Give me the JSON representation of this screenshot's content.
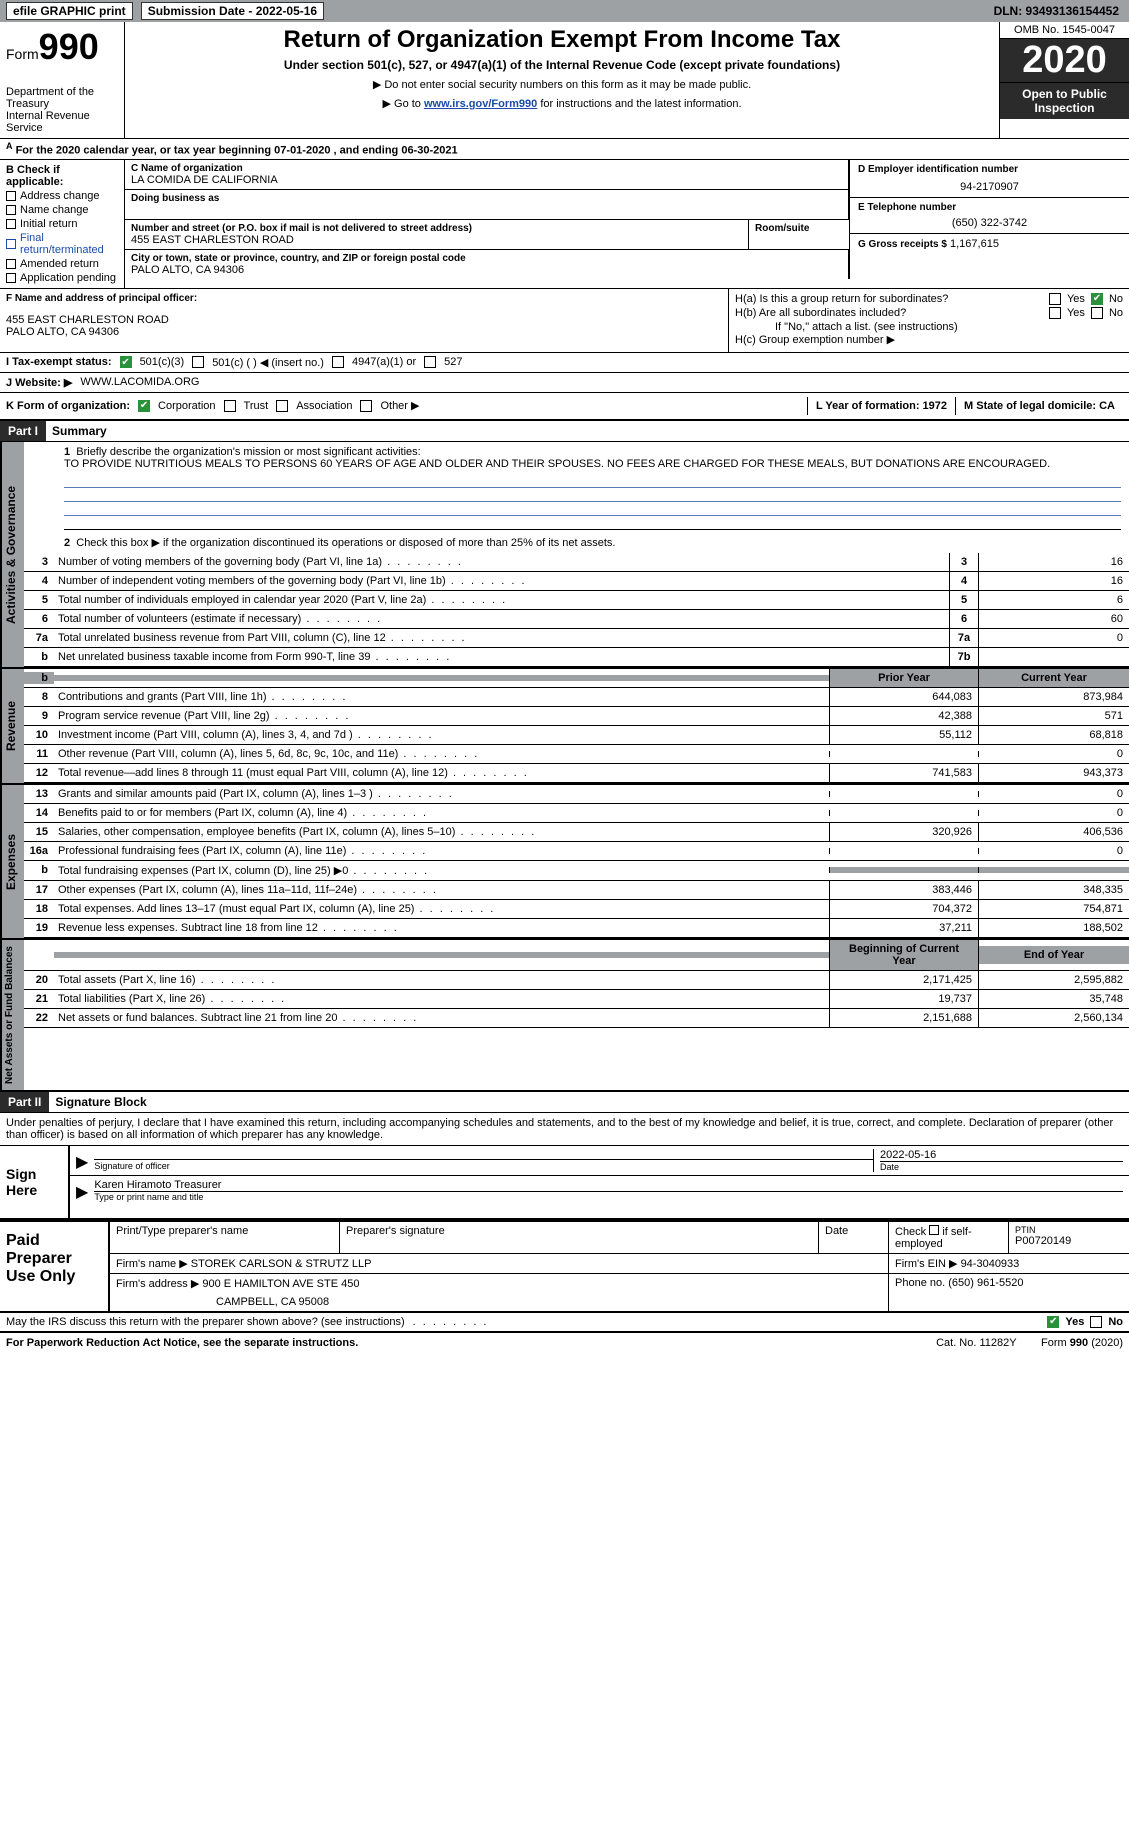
{
  "topbar": {
    "efile": "efile GRAPHIC print",
    "subdate_lbl": "Submission Date - 2022-05-16",
    "dln": "DLN: 93493136154452"
  },
  "header": {
    "form_word": "Form",
    "form_num": "990",
    "dept": "Department of the Treasury\nInternal Revenue Service",
    "title": "Return of Organization Exempt From Income Tax",
    "subtitle": "Under section 501(c), 527, or 4947(a)(1) of the Internal Revenue Code (except private foundations)",
    "note1": "▶ Do not enter social security numbers on this form as it may be made public.",
    "note2_pre": "▶ Go to ",
    "note2_link": "www.irs.gov/Form990",
    "note2_post": " for instructions and the latest information.",
    "omb": "OMB No. 1545-0047",
    "year": "2020",
    "openbox": "Open to Public Inspection"
  },
  "lineA": {
    "pre": "A",
    "text": "For the 2020 calendar year, or tax year beginning 07-01-2020    , and ending 06-30-2021"
  },
  "b": {
    "hdr": "B Check if applicable:",
    "opts": [
      "Address change",
      "Name change",
      "Initial return",
      "Final return/terminated",
      "Amended return",
      "Application pending"
    ]
  },
  "c": {
    "name_lbl": "C Name of organization",
    "name": "LA COMIDA DE CALIFORNIA",
    "dba_lbl": "Doing business as",
    "street_lbl": "Number and street (or P.O. box if mail is not delivered to street address)",
    "room_lbl": "Room/suite",
    "street": "455 EAST CHARLESTON ROAD",
    "city_lbl": "City or town, state or province, country, and ZIP or foreign postal code",
    "city": "PALO ALTO, CA  94306"
  },
  "d": {
    "lbl": "D Employer identification number",
    "val": "94-2170907"
  },
  "e": {
    "lbl": "E Telephone number",
    "val": "(650) 322-3742"
  },
  "g": {
    "lbl": "G Gross receipts $",
    "val": "1,167,615"
  },
  "f": {
    "lbl": "F Name and address of principal officer:",
    "line1": "455 EAST CHARLESTON ROAD",
    "line2": "PALO ALTO, CA  94306"
  },
  "h": {
    "a_lbl": "H(a)  Is this a group return for subordinates?",
    "b_lbl": "H(b)  Are all subordinates included?",
    "b_note": "If \"No,\" attach a list. (see instructions)",
    "c_lbl": "H(c)  Group exemption number ▶",
    "yes": "Yes",
    "no": "No"
  },
  "i": {
    "lbl": "I    Tax-exempt status:",
    "o1": "501(c)(3)",
    "o2": "501(c) (  ) ◀ (insert no.)",
    "o3": "4947(a)(1) or",
    "o4": "527"
  },
  "j": {
    "lbl": "J    Website: ▶",
    "val": "WWW.LACOMIDA.ORG"
  },
  "k": {
    "lbl": "K Form of organization:",
    "o1": "Corporation",
    "o2": "Trust",
    "o3": "Association",
    "o4": "Other ▶"
  },
  "l": {
    "lbl": "L Year of formation: 1972"
  },
  "m": {
    "lbl": "M State of legal domicile: CA"
  },
  "part1": {
    "hdr": "Part I",
    "title": "Summary"
  },
  "gov": {
    "tab": "Activities & Governance",
    "l1_lbl": "Briefly describe the organization's mission or most significant activities:",
    "l1_txt": "TO PROVIDE NUTRITIOUS MEALS TO PERSONS 60 YEARS OF AGE AND OLDER AND THEIR SPOUSES. NO FEES ARE CHARGED FOR THESE MEALS, BUT DONATIONS ARE ENCOURAGED.",
    "l2": "Check this box ▶        if the organization discontinued its operations or disposed of more than 25% of its net assets.",
    "rows": [
      {
        "n": "3",
        "t": "Number of voting members of the governing body (Part VI, line 1a)",
        "box": "3",
        "v": "16"
      },
      {
        "n": "4",
        "t": "Number of independent voting members of the governing body (Part VI, line 1b)",
        "box": "4",
        "v": "16"
      },
      {
        "n": "5",
        "t": "Total number of individuals employed in calendar year 2020 (Part V, line 2a)",
        "box": "5",
        "v": "6"
      },
      {
        "n": "6",
        "t": "Total number of volunteers (estimate if necessary)",
        "box": "6",
        "v": "60"
      },
      {
        "n": "7a",
        "t": "Total unrelated business revenue from Part VIII, column (C), line 12",
        "box": "7a",
        "v": "0"
      },
      {
        "n": "b",
        "t": "Net unrelated business taxable income from Form 990-T, line 39",
        "box": "7b",
        "v": ""
      }
    ]
  },
  "colhdr": {
    "py": "Prior Year",
    "cy": "Current Year",
    "boy": "Beginning of Current Year",
    "eoy": "End of Year"
  },
  "rev": {
    "tab": "Revenue",
    "rows": [
      {
        "n": "8",
        "t": "Contributions and grants (Part VIII, line 1h)",
        "py": "644,083",
        "cy": "873,984"
      },
      {
        "n": "9",
        "t": "Program service revenue (Part VIII, line 2g)",
        "py": "42,388",
        "cy": "571"
      },
      {
        "n": "10",
        "t": "Investment income (Part VIII, column (A), lines 3, 4, and 7d )",
        "py": "55,112",
        "cy": "68,818"
      },
      {
        "n": "11",
        "t": "Other revenue (Part VIII, column (A), lines 5, 6d, 8c, 9c, 10c, and 11e)",
        "py": "",
        "cy": "0"
      },
      {
        "n": "12",
        "t": "Total revenue—add lines 8 through 11 (must equal Part VIII, column (A), line 12)",
        "py": "741,583",
        "cy": "943,373"
      }
    ]
  },
  "exp": {
    "tab": "Expenses",
    "rows": [
      {
        "n": "13",
        "t": "Grants and similar amounts paid (Part IX, column (A), lines 1–3 )",
        "py": "",
        "cy": "0"
      },
      {
        "n": "14",
        "t": "Benefits paid to or for members (Part IX, column (A), line 4)",
        "py": "",
        "cy": "0"
      },
      {
        "n": "15",
        "t": "Salaries, other compensation, employee benefits (Part IX, column (A), lines 5–10)",
        "py": "320,926",
        "cy": "406,536"
      },
      {
        "n": "16a",
        "t": "Professional fundraising fees (Part IX, column (A), line 11e)",
        "py": "",
        "cy": "0"
      },
      {
        "n": "b",
        "t": "Total fundraising expenses (Part IX, column (D), line 25) ▶0",
        "py": "GREY",
        "cy": "GREY"
      },
      {
        "n": "17",
        "t": "Other expenses (Part IX, column (A), lines 11a–11d, 11f–24e)",
        "py": "383,446",
        "cy": "348,335"
      },
      {
        "n": "18",
        "t": "Total expenses. Add lines 13–17 (must equal Part IX, column (A), line 25)",
        "py": "704,372",
        "cy": "754,871"
      },
      {
        "n": "19",
        "t": "Revenue less expenses. Subtract line 18 from line 12",
        "py": "37,211",
        "cy": "188,502"
      }
    ]
  },
  "net": {
    "tab": "Net Assets or Fund Balances",
    "rows": [
      {
        "n": "20",
        "t": "Total assets (Part X, line 16)",
        "py": "2,171,425",
        "cy": "2,595,882"
      },
      {
        "n": "21",
        "t": "Total liabilities (Part X, line 26)",
        "py": "19,737",
        "cy": "35,748"
      },
      {
        "n": "22",
        "t": "Net assets or fund balances. Subtract line 21 from line 20",
        "py": "2,151,688",
        "cy": "2,560,134"
      }
    ]
  },
  "part2": {
    "hdr": "Part II",
    "title": "Signature Block"
  },
  "sig": {
    "decl": "Under penalties of perjury, I declare that I have examined this return, including accompanying schedules and statements, and to the best of my knowledge and belief, it is true, correct, and complete. Declaration of preparer (other than officer) is based on all information of which preparer has any knowledge.",
    "sign_here": "Sign Here",
    "sig_officer": "Signature of officer",
    "date": "2022-05-16",
    "date_lbl": "Date",
    "name": "Karen Hiramoto Treasurer",
    "name_lbl": "Type or print name and title"
  },
  "prep": {
    "left": "Paid Preparer Use Only",
    "h1": "Print/Type preparer's name",
    "h2": "Preparer's signature",
    "h3": "Date",
    "h4_pre": "Check",
    "h4_post": "if self-employed",
    "ptin_lbl": "PTIN",
    "ptin": "P00720149",
    "firm_lbl": "Firm's name    ▶",
    "firm": "STOREK CARLSON & STRUTZ LLP",
    "ein_lbl": "Firm's EIN ▶",
    "ein": "94-3040933",
    "addr_lbl": "Firm's address ▶",
    "addr1": "900 E HAMILTON AVE STE 450",
    "addr2": "CAMPBELL, CA  95008",
    "phone_lbl": "Phone no.",
    "phone": "(650) 961-5520"
  },
  "discuss": {
    "txt": "May the IRS discuss this return with the preparer shown above? (see instructions)",
    "yes": "Yes",
    "no": "No"
  },
  "footer": {
    "left": "For Paperwork Reduction Act Notice, see the separate instructions.",
    "mid": "Cat. No. 11282Y",
    "right": "Form 990 (2020)"
  }
}
